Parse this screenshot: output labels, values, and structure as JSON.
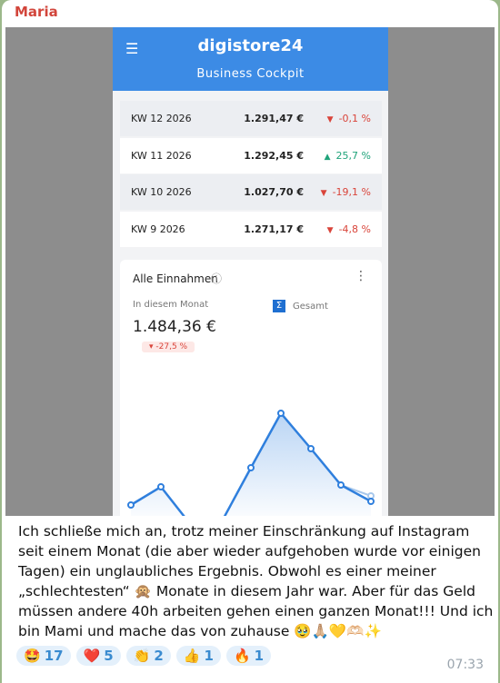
{
  "sender": "Maria",
  "app": {
    "brand": "digistore24",
    "subtitle": "Business Cockpit",
    "weeks": [
      {
        "label": "KW 12 2026",
        "amount": "1.291,47 €",
        "change": "-0,1 %",
        "trend": "down"
      },
      {
        "label": "KW 11 2026",
        "amount": "1.292,45 €",
        "change": "25,7 %",
        "trend": "up"
      },
      {
        "label": "KW 10 2026",
        "amount": "1.027,70 €",
        "change": "-19,1 %",
        "trend": "down"
      },
      {
        "label": "KW 9 2026",
        "amount": "1.271,17 €",
        "change": "-4,8 %",
        "trend": "down"
      }
    ],
    "card": {
      "title": "Alle Einnahmen",
      "period": "In diesem Monat",
      "total": "1.484,36 €",
      "change": "-27,5 %",
      "legend": "Gesamt"
    }
  },
  "message": {
    "lines": [
      "Ich schließe mich an, trotz meiner Einschränkung auf Instagram",
      "seit einem Monat (die aber wieder aufgehoben wurde vor einigen",
      "Tagen) ein unglaubliches Ergebnis. Obwohl es einer meiner",
      "„schlechtesten“ 🙊 Monate in diesem Jahr war. Aber für das Geld",
      "müssen andere 40h arbeiten gehen einen ganzen Monat!!! Und ich",
      "bin Mami und mache das von zuhause 🥹🙏🏼💛🫶🏻✨"
    ]
  },
  "reactions": [
    {
      "emoji": "🤩",
      "count": 17
    },
    {
      "emoji": "❤️",
      "count": 5
    },
    {
      "emoji": "👏",
      "count": 2
    },
    {
      "emoji": "👍",
      "count": 1
    },
    {
      "emoji": "🔥",
      "count": 1
    }
  ],
  "time": "07:33"
}
